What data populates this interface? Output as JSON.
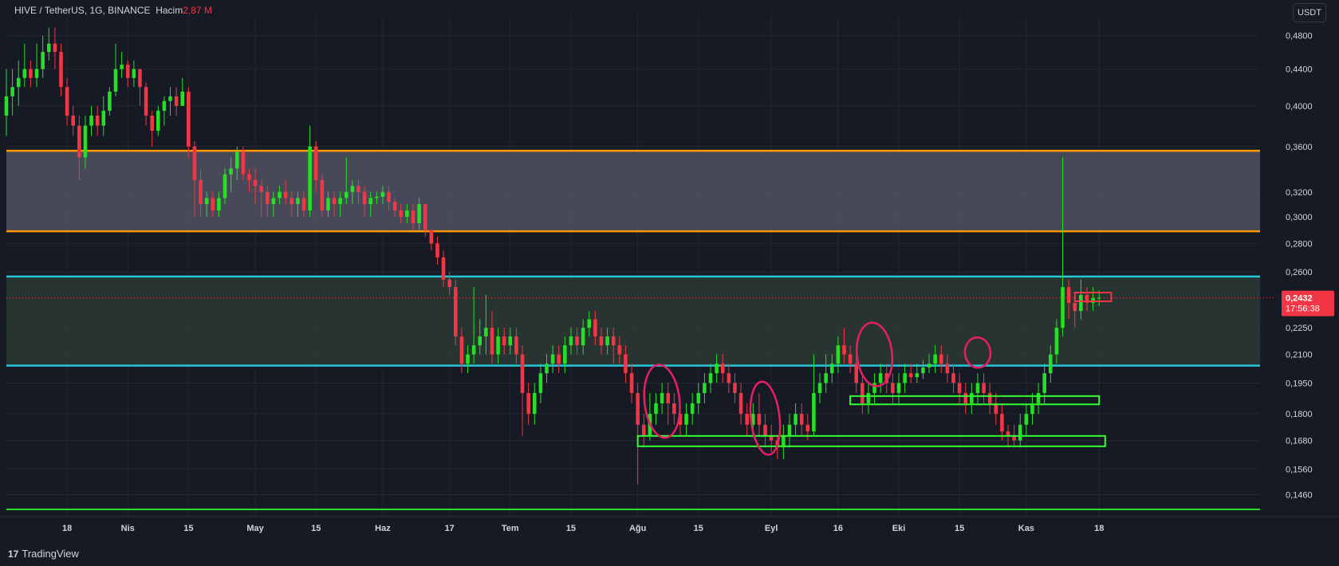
{
  "header": {
    "symbol": "HIVE / TetherUS, 1G, BINANCE",
    "volume_label": "Hacim",
    "volume_value": "2,87 M"
  },
  "quote_currency": "USDT",
  "price_tag": {
    "price": "0,2432",
    "countdown": "17:56:38"
  },
  "branding": {
    "logo": "17",
    "name": "TradingView"
  },
  "colors": {
    "up": "#26e026",
    "down": "#f23645",
    "orange": "#ff9800",
    "cyan": "#26c6da",
    "zone_green": "#31ff31",
    "markup": "#e91e63"
  },
  "chart_data": {
    "type": "candlestick",
    "y_scale": "log",
    "ylim": [
      0.1385,
      0.505
    ],
    "x_index_range": [
      0,
      196
    ],
    "price_ticks": [
      "0,4800",
      "0,4400",
      "0,4000",
      "0,3600",
      "0,3200",
      "0,3000",
      "0,2800",
      "0,2600",
      "0,2250",
      "0,2100",
      "0,1950",
      "0,1800",
      "0,1680",
      "0,1560",
      "0,1460"
    ],
    "price_tick_values": [
      0.48,
      0.44,
      0.4,
      0.36,
      0.32,
      0.3,
      0.28,
      0.26,
      0.225,
      0.21,
      0.195,
      0.18,
      0.168,
      0.156,
      0.146
    ],
    "time_ticks": [
      {
        "label": "18",
        "i": 10
      },
      {
        "label": "Nis",
        "i": 20
      },
      {
        "label": "15",
        "i": 30
      },
      {
        "label": "May",
        "i": 41
      },
      {
        "label": "15",
        "i": 51
      },
      {
        "label": "Haz",
        "i": 62
      },
      {
        "label": "17",
        "i": 73
      },
      {
        "label": "Tem",
        "i": 83
      },
      {
        "label": "15",
        "i": 93
      },
      {
        "label": "Ağu",
        "i": 104
      },
      {
        "label": "15",
        "i": 114
      },
      {
        "label": "Eyl",
        "i": 126
      },
      {
        "label": "16",
        "i": 137
      },
      {
        "label": "Eki",
        "i": 147
      },
      {
        "label": "15",
        "i": 157
      },
      {
        "label": "Kas",
        "i": 168
      },
      {
        "label": "18",
        "i": 180
      }
    ],
    "levels": [
      {
        "price": 0.356,
        "color": "orange"
      },
      {
        "price": 0.289,
        "color": "orange"
      },
      {
        "price": 0.257,
        "color": "cyan"
      },
      {
        "price": 0.204,
        "color": "cyan"
      }
    ],
    "zones": [
      {
        "from": 0.289,
        "to": 0.356,
        "fill": "#5a5a6a"
      },
      {
        "from": 0.204,
        "to": 0.257,
        "fill": "#2f3d36"
      }
    ],
    "green_boxes": [
      {
        "i0": 104,
        "i1": 181,
        "low": 0.1655,
        "high": 0.17
      },
      {
        "i0": 139,
        "i1": 180,
        "low": 0.1845,
        "high": 0.1885
      }
    ],
    "small_box": {
      "i0": 176,
      "i1": 182,
      "low": 0.241,
      "high": 0.2465
    },
    "bottom_line": 0.1405,
    "last_price": 0.2432,
    "marker_circles": [
      {
        "i": 108,
        "p": 0.186,
        "rx": 22,
        "ry": 46
      },
      {
        "i": 125,
        "p": 0.178,
        "rx": 18,
        "ry": 46
      },
      {
        "i": 143,
        "p": 0.21,
        "rx": 22,
        "ry": 40
      },
      {
        "i": 160,
        "p": 0.211,
        "rx": 16,
        "ry": 19
      }
    ],
    "candles": [
      [
        0.39,
        0.41,
        0.44,
        0.37
      ],
      [
        0.41,
        0.42,
        0.44,
        0.39
      ],
      [
        0.42,
        0.43,
        0.45,
        0.4
      ],
      [
        0.43,
        0.44,
        0.47,
        0.42
      ],
      [
        0.44,
        0.43,
        0.45,
        0.42
      ],
      [
        0.43,
        0.44,
        0.47,
        0.42
      ],
      [
        0.44,
        0.46,
        0.48,
        0.43
      ],
      [
        0.46,
        0.47,
        0.49,
        0.45
      ],
      [
        0.47,
        0.46,
        0.49,
        0.44
      ],
      [
        0.46,
        0.42,
        0.47,
        0.41
      ],
      [
        0.42,
        0.39,
        0.43,
        0.38
      ],
      [
        0.39,
        0.38,
        0.4,
        0.37
      ],
      [
        0.38,
        0.35,
        0.39,
        0.33
      ],
      [
        0.35,
        0.38,
        0.39,
        0.34
      ],
      [
        0.38,
        0.39,
        0.4,
        0.37
      ],
      [
        0.39,
        0.38,
        0.4,
        0.37
      ],
      [
        0.38,
        0.395,
        0.41,
        0.37
      ],
      [
        0.395,
        0.415,
        0.42,
        0.39
      ],
      [
        0.415,
        0.44,
        0.47,
        0.41
      ],
      [
        0.44,
        0.445,
        0.46,
        0.43
      ],
      [
        0.445,
        0.43,
        0.45,
        0.42
      ],
      [
        0.43,
        0.44,
        0.45,
        0.42
      ],
      [
        0.44,
        0.42,
        0.44,
        0.4
      ],
      [
        0.42,
        0.39,
        0.425,
        0.38
      ],
      [
        0.39,
        0.375,
        0.395,
        0.36
      ],
      [
        0.375,
        0.395,
        0.4,
        0.37
      ],
      [
        0.395,
        0.405,
        0.41,
        0.38
      ],
      [
        0.405,
        0.41,
        0.42,
        0.39
      ],
      [
        0.41,
        0.4,
        0.42,
        0.39
      ],
      [
        0.4,
        0.415,
        0.43,
        0.4
      ],
      [
        0.415,
        0.36,
        0.42,
        0.35
      ],
      [
        0.36,
        0.33,
        0.365,
        0.3
      ],
      [
        0.33,
        0.31,
        0.34,
        0.3
      ],
      [
        0.31,
        0.315,
        0.32,
        0.3
      ],
      [
        0.315,
        0.305,
        0.32,
        0.3
      ],
      [
        0.305,
        0.315,
        0.32,
        0.3
      ],
      [
        0.315,
        0.335,
        0.34,
        0.31
      ],
      [
        0.335,
        0.34,
        0.35,
        0.32
      ],
      [
        0.34,
        0.355,
        0.36,
        0.33
      ],
      [
        0.355,
        0.335,
        0.36,
        0.33
      ],
      [
        0.335,
        0.33,
        0.34,
        0.32
      ],
      [
        0.33,
        0.325,
        0.34,
        0.31
      ],
      [
        0.325,
        0.32,
        0.33,
        0.3
      ],
      [
        0.32,
        0.31,
        0.325,
        0.3
      ],
      [
        0.31,
        0.315,
        0.32,
        0.3
      ],
      [
        0.315,
        0.32,
        0.325,
        0.31
      ],
      [
        0.32,
        0.315,
        0.33,
        0.31
      ],
      [
        0.315,
        0.31,
        0.32,
        0.3
      ],
      [
        0.31,
        0.315,
        0.32,
        0.3
      ],
      [
        0.315,
        0.305,
        0.32,
        0.3
      ],
      [
        0.305,
        0.36,
        0.38,
        0.3
      ],
      [
        0.36,
        0.33,
        0.365,
        0.32
      ],
      [
        0.33,
        0.305,
        0.335,
        0.3
      ],
      [
        0.305,
        0.315,
        0.32,
        0.3
      ],
      [
        0.315,
        0.31,
        0.32,
        0.3
      ],
      [
        0.31,
        0.315,
        0.32,
        0.3
      ],
      [
        0.315,
        0.32,
        0.35,
        0.31
      ],
      [
        0.32,
        0.325,
        0.33,
        0.31
      ],
      [
        0.325,
        0.32,
        0.33,
        0.31
      ],
      [
        0.32,
        0.31,
        0.325,
        0.3
      ],
      [
        0.31,
        0.315,
        0.32,
        0.3
      ],
      [
        0.315,
        0.316,
        0.32,
        0.31
      ],
      [
        0.316,
        0.32,
        0.325,
        0.31
      ],
      [
        0.32,
        0.312,
        0.325,
        0.305
      ],
      [
        0.312,
        0.305,
        0.315,
        0.3
      ],
      [
        0.305,
        0.3,
        0.31,
        0.295
      ],
      [
        0.3,
        0.305,
        0.31,
        0.295
      ],
      [
        0.305,
        0.295,
        0.31,
        0.29
      ],
      [
        0.295,
        0.31,
        0.315,
        0.29
      ],
      [
        0.31,
        0.29,
        0.31,
        0.285
      ],
      [
        0.29,
        0.28,
        0.29,
        0.275
      ],
      [
        0.28,
        0.27,
        0.285,
        0.265
      ],
      [
        0.27,
        0.255,
        0.275,
        0.25
      ],
      [
        0.255,
        0.25,
        0.26,
        0.245
      ],
      [
        0.25,
        0.22,
        0.255,
        0.215
      ],
      [
        0.22,
        0.205,
        0.225,
        0.2
      ],
      [
        0.205,
        0.21,
        0.215,
        0.2
      ],
      [
        0.21,
        0.215,
        0.25,
        0.205
      ],
      [
        0.215,
        0.22,
        0.23,
        0.21
      ],
      [
        0.22,
        0.225,
        0.245,
        0.21
      ],
      [
        0.225,
        0.21,
        0.235,
        0.205
      ],
      [
        0.21,
        0.22,
        0.225,
        0.205
      ],
      [
        0.22,
        0.215,
        0.225,
        0.21
      ],
      [
        0.215,
        0.22,
        0.225,
        0.21
      ],
      [
        0.22,
        0.21,
        0.225,
        0.205
      ],
      [
        0.21,
        0.19,
        0.215,
        0.17
      ],
      [
        0.19,
        0.18,
        0.195,
        0.175
      ],
      [
        0.18,
        0.19,
        0.195,
        0.175
      ],
      [
        0.19,
        0.2,
        0.205,
        0.185
      ],
      [
        0.2,
        0.205,
        0.21,
        0.195
      ],
      [
        0.205,
        0.21,
        0.215,
        0.2
      ],
      [
        0.21,
        0.205,
        0.215,
        0.2
      ],
      [
        0.205,
        0.215,
        0.22,
        0.2
      ],
      [
        0.215,
        0.22,
        0.225,
        0.21
      ],
      [
        0.22,
        0.215,
        0.225,
        0.21
      ],
      [
        0.215,
        0.225,
        0.23,
        0.21
      ],
      [
        0.225,
        0.23,
        0.235,
        0.22
      ],
      [
        0.23,
        0.22,
        0.235,
        0.215
      ],
      [
        0.22,
        0.215,
        0.225,
        0.21
      ],
      [
        0.215,
        0.22,
        0.225,
        0.21
      ],
      [
        0.22,
        0.215,
        0.225,
        0.205
      ],
      [
        0.215,
        0.21,
        0.22,
        0.205
      ],
      [
        0.21,
        0.2,
        0.215,
        0.195
      ],
      [
        0.2,
        0.19,
        0.205,
        0.185
      ],
      [
        0.19,
        0.175,
        0.195,
        0.15
      ],
      [
        0.175,
        0.17,
        0.18,
        0.165
      ],
      [
        0.17,
        0.18,
        0.19,
        0.168
      ],
      [
        0.18,
        0.185,
        0.19,
        0.175
      ],
      [
        0.185,
        0.19,
        0.195,
        0.18
      ],
      [
        0.19,
        0.185,
        0.195,
        0.175
      ],
      [
        0.185,
        0.18,
        0.19,
        0.175
      ],
      [
        0.18,
        0.175,
        0.185,
        0.17
      ],
      [
        0.175,
        0.18,
        0.185,
        0.17
      ],
      [
        0.18,
        0.185,
        0.19,
        0.175
      ],
      [
        0.185,
        0.19,
        0.195,
        0.18
      ],
      [
        0.19,
        0.195,
        0.2,
        0.185
      ],
      [
        0.195,
        0.2,
        0.205,
        0.19
      ],
      [
        0.2,
        0.205,
        0.21,
        0.195
      ],
      [
        0.205,
        0.2,
        0.21,
        0.195
      ],
      [
        0.2,
        0.195,
        0.205,
        0.19
      ],
      [
        0.195,
        0.19,
        0.2,
        0.185
      ],
      [
        0.19,
        0.18,
        0.195,
        0.175
      ],
      [
        0.18,
        0.175,
        0.185,
        0.17
      ],
      [
        0.175,
        0.18,
        0.185,
        0.17
      ],
      [
        0.18,
        0.175,
        0.19,
        0.17
      ],
      [
        0.175,
        0.17,
        0.18,
        0.165
      ],
      [
        0.17,
        0.168,
        0.175,
        0.163
      ],
      [
        0.168,
        0.165,
        0.17,
        0.16
      ],
      [
        0.165,
        0.17,
        0.175,
        0.16
      ],
      [
        0.17,
        0.175,
        0.18,
        0.165
      ],
      [
        0.175,
        0.18,
        0.185,
        0.17
      ],
      [
        0.18,
        0.175,
        0.185,
        0.17
      ],
      [
        0.175,
        0.172,
        0.18,
        0.168
      ],
      [
        0.172,
        0.19,
        0.21,
        0.17
      ],
      [
        0.19,
        0.195,
        0.2,
        0.185
      ],
      [
        0.195,
        0.2,
        0.21,
        0.19
      ],
      [
        0.2,
        0.205,
        0.21,
        0.195
      ],
      [
        0.205,
        0.215,
        0.22,
        0.2
      ],
      [
        0.215,
        0.21,
        0.225,
        0.205
      ],
      [
        0.21,
        0.205,
        0.215,
        0.2
      ],
      [
        0.205,
        0.195,
        0.21,
        0.19
      ],
      [
        0.195,
        0.185,
        0.2,
        0.18
      ],
      [
        0.185,
        0.19,
        0.195,
        0.18
      ],
      [
        0.19,
        0.195,
        0.2,
        0.185
      ],
      [
        0.195,
        0.2,
        0.205,
        0.19
      ],
      [
        0.2,
        0.195,
        0.205,
        0.19
      ],
      [
        0.195,
        0.19,
        0.2,
        0.185
      ],
      [
        0.19,
        0.195,
        0.2,
        0.185
      ],
      [
        0.195,
        0.2,
        0.205,
        0.19
      ],
      [
        0.2,
        0.198,
        0.205,
        0.195
      ],
      [
        0.198,
        0.2,
        0.205,
        0.195
      ],
      [
        0.2,
        0.203,
        0.207,
        0.197
      ],
      [
        0.203,
        0.205,
        0.21,
        0.2
      ],
      [
        0.205,
        0.21,
        0.215,
        0.2
      ],
      [
        0.21,
        0.205,
        0.215,
        0.2
      ],
      [
        0.205,
        0.2,
        0.21,
        0.195
      ],
      [
        0.2,
        0.195,
        0.205,
        0.19
      ],
      [
        0.195,
        0.19,
        0.2,
        0.185
      ],
      [
        0.19,
        0.185,
        0.195,
        0.18
      ],
      [
        0.185,
        0.19,
        0.195,
        0.18
      ],
      [
        0.19,
        0.195,
        0.2,
        0.185
      ],
      [
        0.195,
        0.19,
        0.2,
        0.185
      ],
      [
        0.19,
        0.185,
        0.195,
        0.18
      ],
      [
        0.185,
        0.18,
        0.19,
        0.175
      ],
      [
        0.18,
        0.172,
        0.185,
        0.168
      ],
      [
        0.172,
        0.17,
        0.175,
        0.165
      ],
      [
        0.17,
        0.168,
        0.175,
        0.165
      ],
      [
        0.168,
        0.175,
        0.18,
        0.165
      ],
      [
        0.175,
        0.18,
        0.185,
        0.17
      ],
      [
        0.18,
        0.185,
        0.19,
        0.175
      ],
      [
        0.185,
        0.19,
        0.195,
        0.18
      ],
      [
        0.19,
        0.2,
        0.205,
        0.185
      ],
      [
        0.2,
        0.21,
        0.215,
        0.195
      ],
      [
        0.21,
        0.225,
        0.23,
        0.205
      ],
      [
        0.225,
        0.25,
        0.35,
        0.22
      ],
      [
        0.25,
        0.24,
        0.255,
        0.23
      ],
      [
        0.24,
        0.235,
        0.245,
        0.225
      ],
      [
        0.235,
        0.245,
        0.255,
        0.23
      ],
      [
        0.245,
        0.24,
        0.25,
        0.235
      ],
      [
        0.24,
        0.243,
        0.25,
        0.235
      ],
      [
        0.243,
        0.2432,
        0.248,
        0.238
      ]
    ]
  }
}
